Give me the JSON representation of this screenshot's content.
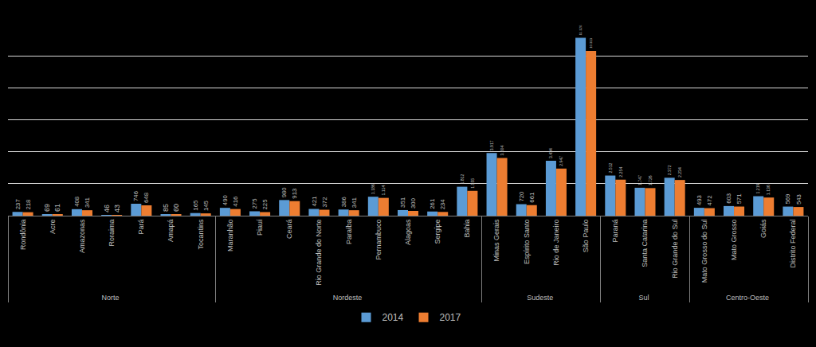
{
  "chart_data": {
    "type": "bar",
    "categories": [
      "Rondônia",
      "Acre",
      "Amazonas",
      "Roraima",
      "Pará",
      "Amapá",
      "Tocantins",
      "Maranhão",
      "Piauí",
      "Ceará",
      "Rio Grande do Norte",
      "Paraíba",
      "Pernambuco",
      "Alagoas",
      "Sergipe",
      "Bahia",
      "Minas Gerais",
      "Espírito Santo",
      "Rio de Janeiro",
      "São Paulo",
      "Paraná",
      "Santa Catarina",
      "Rio Grande do Sul",
      "Mato Grosso do Sul",
      "Mato Grosso",
      "Goiás",
      "Distrito Federal"
    ],
    "regions": [
      "Norte",
      "Norte",
      "Norte",
      "Norte",
      "Norte",
      "Norte",
      "Norte",
      "Nordeste",
      "Nordeste",
      "Nordeste",
      "Nordeste",
      "Nordeste",
      "Nordeste",
      "Nordeste",
      "Nordeste",
      "Nordeste",
      "Sudeste",
      "Sudeste",
      "Sudeste",
      "Sudeste",
      "Sul",
      "Sul",
      "Sul",
      "Centro-Oeste",
      "Centro-Oeste",
      "Centro-Oeste",
      "Centro-Oeste"
    ],
    "series": [
      {
        "name": "2014",
        "color": "#5b9bd5",
        "values": [
          237,
          69,
          408,
          46,
          746,
          85,
          165,
          490,
          275,
          980,
          421,
          386,
          1186,
          351,
          261,
          1812,
          3917,
          720,
          3434,
          11126,
          2512,
          1747,
          2372,
          493,
          603,
          1219,
          569
        ],
        "value_labels": [
          "237",
          "69",
          "408",
          "46",
          "746",
          "85",
          "165",
          "490",
          "275",
          "980",
          "421",
          "386",
          "1.186",
          "351",
          "261",
          "1.812",
          "3.917",
          "720",
          "3.434",
          "11.126",
          "2.512",
          "1.747",
          "2.372",
          "493",
          "603",
          "1.219",
          "569"
        ]
      },
      {
        "name": "2017",
        "color": "#ed7d31",
        "values": [
          218,
          61,
          341,
          43,
          648,
          60,
          145,
          416,
          225,
          913,
          372,
          341,
          1114,
          300,
          234,
          1555,
          3604,
          661,
          2947,
          10313,
          2254,
          1726,
          2234,
          472,
          571,
          1136,
          543
        ],
        "value_labels": [
          "218",
          "61",
          "341",
          "43",
          "648",
          "60",
          "145",
          "416",
          "225",
          "913",
          "372",
          "341",
          "1.114",
          "300",
          "234",
          "1.555",
          "3.604",
          "661",
          "2.947",
          "10.313",
          "2.254",
          "1.726",
          "2.234",
          "472",
          "571",
          "1.136",
          "543"
        ]
      }
    ],
    "ylim": [
      0,
      12000
    ],
    "yticks": [
      0,
      2000,
      4000,
      6000,
      8000,
      10000,
      12000
    ],
    "grid": true,
    "data_labels": true,
    "tick_labels": "x",
    "legend": "bottom"
  }
}
